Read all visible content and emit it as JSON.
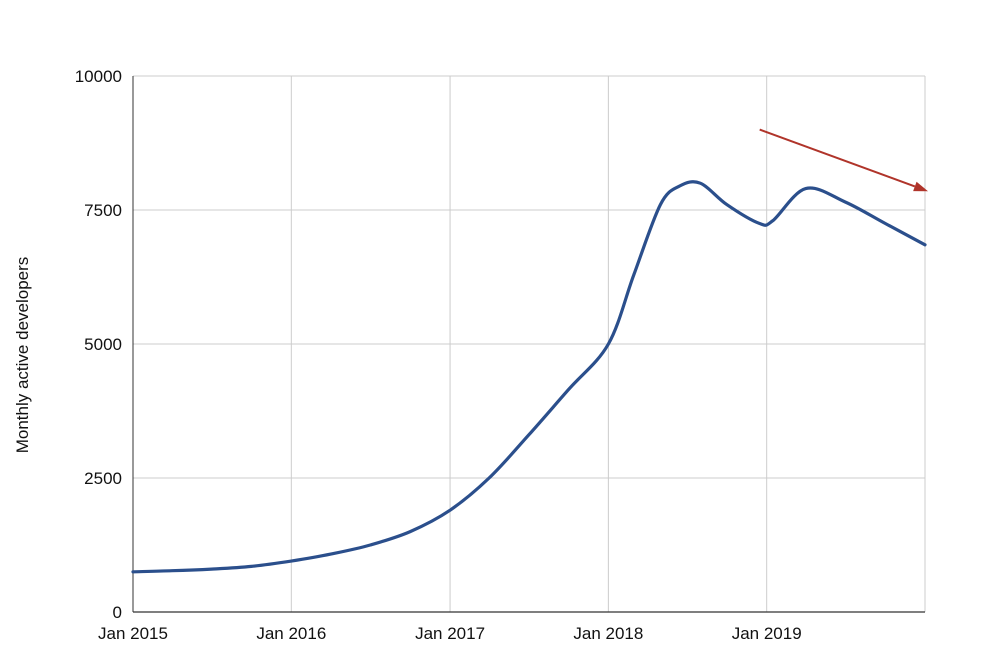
{
  "chart_data": {
    "type": "line",
    "title": "",
    "xlabel": "",
    "ylabel": "Monthly active developers",
    "ylim": [
      0,
      10000
    ],
    "xlim": [
      "2015-01-01",
      "2020-01-01"
    ],
    "y_ticks": [
      0,
      2500,
      5000,
      7500,
      10000
    ],
    "y_tick_labels": [
      "0",
      "2500",
      "5000",
      "7500",
      "10000"
    ],
    "x_ticks": [
      "2015-01-01",
      "2016-01-01",
      "2017-01-01",
      "2018-01-01",
      "2019-01-01"
    ],
    "x_tick_labels": [
      "Jan 2015",
      "Jan 2016",
      "Jan 2017",
      "Jan 2018",
      "Jan 2019"
    ],
    "grid": true,
    "line_color": "#2b4f8c",
    "annotation_arrow_color": "#b0342a",
    "annotation_arrow_from": {
      "x": "2019-01-01",
      "y": 9000
    },
    "annotation_arrow_to": {
      "x": "2020-01-01",
      "y": 7850
    },
    "series": [
      {
        "points": [
          {
            "x": "2015-01-01",
            "y": 750
          },
          {
            "x": "2015-04-01",
            "y": 770
          },
          {
            "x": "2015-07-01",
            "y": 800
          },
          {
            "x": "2015-10-01",
            "y": 850
          },
          {
            "x": "2016-01-01",
            "y": 950
          },
          {
            "x": "2016-04-01",
            "y": 1080
          },
          {
            "x": "2016-07-01",
            "y": 1250
          },
          {
            "x": "2016-10-01",
            "y": 1500
          },
          {
            "x": "2017-01-01",
            "y": 1900
          },
          {
            "x": "2017-04-01",
            "y": 2500
          },
          {
            "x": "2017-07-01",
            "y": 3300
          },
          {
            "x": "2017-10-01",
            "y": 4150
          },
          {
            "x": "2018-01-01",
            "y": 5000
          },
          {
            "x": "2018-03-01",
            "y": 6300
          },
          {
            "x": "2018-05-01",
            "y": 7600
          },
          {
            "x": "2018-06-15",
            "y": 7950
          },
          {
            "x": "2018-08-01",
            "y": 8000
          },
          {
            "x": "2018-10-01",
            "y": 7600
          },
          {
            "x": "2018-12-15",
            "y": 7250
          },
          {
            "x": "2019-01-15",
            "y": 7300
          },
          {
            "x": "2019-04-01",
            "y": 7900
          },
          {
            "x": "2019-07-01",
            "y": 7650
          },
          {
            "x": "2019-10-01",
            "y": 7250
          },
          {
            "x": "2020-01-01",
            "y": 6850
          }
        ]
      }
    ]
  }
}
